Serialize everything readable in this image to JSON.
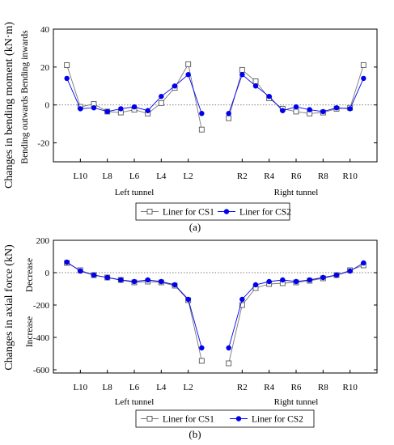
{
  "chart_data": [
    {
      "type": "line",
      "panel_label": "(a)",
      "ylabel": "Changes in bending moment (kN·m)",
      "ylabel2": "Bending outwards Bending inwards",
      "ylim": [
        -30,
        40
      ],
      "yticks": [
        -20,
        0,
        20,
        40
      ],
      "x_tick_labels": [
        {
          "x": 2,
          "label": "L10"
        },
        {
          "x": 4,
          "label": "L8"
        },
        {
          "x": 6,
          "label": "L6"
        },
        {
          "x": 8,
          "label": "L4"
        },
        {
          "x": 10,
          "label": "L2"
        },
        {
          "x": 14,
          "label": "R2"
        },
        {
          "x": 16,
          "label": "R4"
        },
        {
          "x": 18,
          "label": "R6"
        },
        {
          "x": 20,
          "label": "R8"
        },
        {
          "x": 22,
          "label": "R10"
        }
      ],
      "group_labels": [
        {
          "x": 6,
          "label": "Left tunnel"
        },
        {
          "x": 18,
          "label": "Right tunnel"
        }
      ],
      "zero_line": "dotted",
      "legend": "bottom",
      "series": [
        {
          "name": "Liner for CS1",
          "marker": "open-square",
          "color": "#777777",
          "segments": [
            [
              [
                1,
                21
              ],
              [
                2,
                -1
              ],
              [
                3,
                0.5
              ],
              [
                4,
                -3.5
              ],
              [
                5,
                -4
              ],
              [
                6,
                -2.5
              ],
              [
                7,
                -4.5
              ],
              [
                8,
                1
              ],
              [
                9,
                9
              ],
              [
                10,
                21.5
              ],
              [
                11,
                -13
              ]
            ],
            [
              [
                13,
                -7
              ],
              [
                14,
                18.5
              ],
              [
                15,
                12.5
              ],
              [
                16,
                3.5
              ],
              [
                17,
                -2
              ],
              [
                18,
                -3.5
              ],
              [
                19,
                -4.5
              ],
              [
                20,
                -4
              ],
              [
                21,
                -2
              ],
              [
                22,
                -1.5
              ],
              [
                23,
                21
              ]
            ]
          ]
        },
        {
          "name": "Liner for CS2",
          "marker": "filled-circle",
          "color": "#0000ee",
          "segments": [
            [
              [
                1,
                14
              ],
              [
                2,
                -2
              ],
              [
                3,
                -1.5
              ],
              [
                4,
                -3.5
              ],
              [
                5,
                -2
              ],
              [
                6,
                -1
              ],
              [
                7,
                -3
              ],
              [
                8,
                4.5
              ],
              [
                9,
                10
              ],
              [
                10,
                16
              ],
              [
                11,
                -4.5
              ]
            ],
            [
              [
                13,
                -4.5
              ],
              [
                14,
                16
              ],
              [
                15,
                10
              ],
              [
                16,
                4.5
              ],
              [
                17,
                -3
              ],
              [
                18,
                -1
              ],
              [
                19,
                -2.5
              ],
              [
                20,
                -3.5
              ],
              [
                21,
                -1.5
              ],
              [
                22,
                -2
              ],
              [
                23,
                14
              ]
            ]
          ]
        }
      ]
    },
    {
      "type": "line",
      "panel_label": "(b)",
      "ylabel": "Changes in axial force (kN)",
      "ylabel_increase": "Increase",
      "ylabel_decrease": "Decrease",
      "ylim": [
        -620,
        200
      ],
      "yticks": [
        -600,
        -400,
        -200,
        0,
        200
      ],
      "x_tick_labels": [
        {
          "x": 2,
          "label": "L10"
        },
        {
          "x": 4,
          "label": "L8"
        },
        {
          "x": 6,
          "label": "L6"
        },
        {
          "x": 8,
          "label": "L4"
        },
        {
          "x": 10,
          "label": "L2"
        },
        {
          "x": 14,
          "label": "R2"
        },
        {
          "x": 16,
          "label": "R4"
        },
        {
          "x": 18,
          "label": "R6"
        },
        {
          "x": 20,
          "label": "R8"
        },
        {
          "x": 22,
          "label": "R10"
        }
      ],
      "group_labels": [
        {
          "x": 6,
          "label": "Left tunnel"
        },
        {
          "x": 18,
          "label": "Right tunnel"
        }
      ],
      "zero_line": "dotted",
      "legend": "bottom",
      "series": [
        {
          "name": "Liner for CS1",
          "marker": "open-square",
          "color": "#777777",
          "segments": [
            [
              [
                1,
                60
              ],
              [
                2,
                15
              ],
              [
                3,
                -15
              ],
              [
                4,
                -30
              ],
              [
                5,
                -45
              ],
              [
                6,
                -60
              ],
              [
                7,
                -55
              ],
              [
                8,
                -60
              ],
              [
                9,
                -80
              ],
              [
                10,
                -170
              ],
              [
                11,
                -545
              ]
            ],
            [
              [
                13,
                -560
              ],
              [
                14,
                -200
              ],
              [
                15,
                -95
              ],
              [
                16,
                -70
              ],
              [
                17,
                -65
              ],
              [
                18,
                -60
              ],
              [
                19,
                -50
              ],
              [
                20,
                -35
              ],
              [
                21,
                -15
              ],
              [
                22,
                15
              ],
              [
                23,
                45
              ]
            ]
          ]
        },
        {
          "name": "Liner for CS2",
          "marker": "filled-circle",
          "color": "#0000ee",
          "segments": [
            [
              [
                1,
                65
              ],
              [
                2,
                10
              ],
              [
                3,
                -15
              ],
              [
                4,
                -30
              ],
              [
                5,
                -45
              ],
              [
                6,
                -55
              ],
              [
                7,
                -45
              ],
              [
                8,
                -55
              ],
              [
                9,
                -75
              ],
              [
                10,
                -165
              ],
              [
                11,
                -465
              ]
            ],
            [
              [
                13,
                -465
              ],
              [
                14,
                -165
              ],
              [
                15,
                -75
              ],
              [
                16,
                -55
              ],
              [
                17,
                -45
              ],
              [
                18,
                -55
              ],
              [
                19,
                -45
              ],
              [
                20,
                -30
              ],
              [
                21,
                -15
              ],
              [
                22,
                10
              ],
              [
                23,
                60
              ]
            ]
          ]
        }
      ]
    }
  ]
}
